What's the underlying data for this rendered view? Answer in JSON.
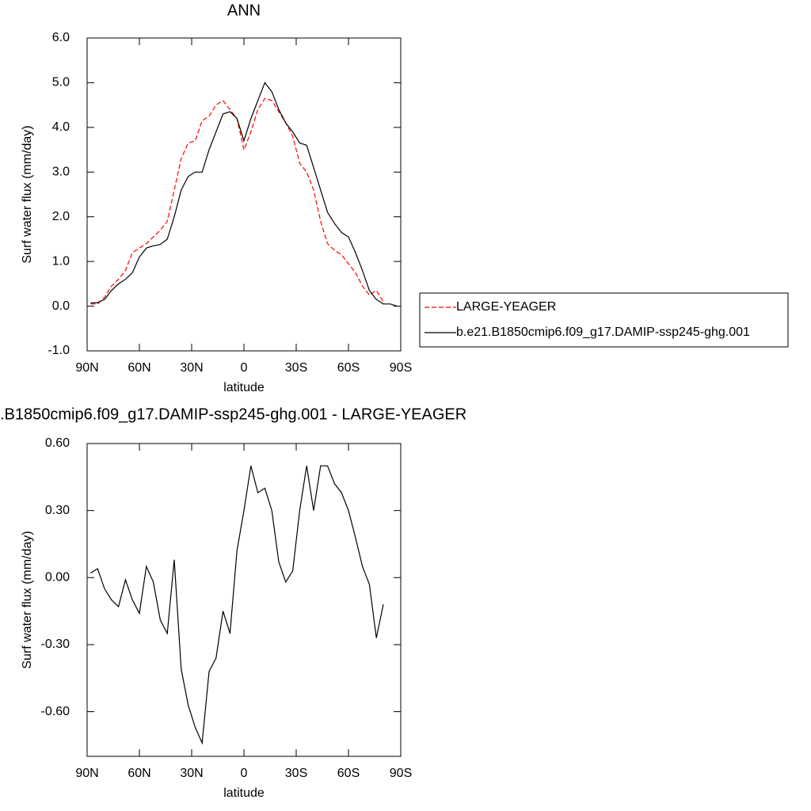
{
  "chart_data": [
    {
      "type": "line",
      "title": "ANN",
      "xlabel": "latitude",
      "ylabel": "Surf water flux (mm/day)",
      "x": [
        88,
        84,
        80,
        76,
        72,
        68,
        64,
        60,
        56,
        52,
        48,
        44,
        40,
        36,
        32,
        28,
        24,
        20,
        16,
        12,
        8,
        4,
        0,
        -4,
        -8,
        -12,
        -16,
        -20,
        -24,
        -28,
        -32,
        -36,
        -40,
        -44,
        -48,
        -52,
        -56,
        -60,
        -64,
        -68,
        -72,
        -76,
        -80,
        -84,
        -88
      ],
      "xlim": [
        90,
        -90
      ],
      "xticks": [
        {
          "value": 90,
          "label": "90N"
        },
        {
          "value": 60,
          "label": "60N"
        },
        {
          "value": 30,
          "label": "30N"
        },
        0,
        {
          "value": -30,
          "label": "30S"
        },
        {
          "value": -60,
          "label": "60S"
        },
        {
          "value": -90,
          "label": "90S"
        }
      ],
      "ylim": [
        -1,
        6
      ],
      "yticks": [
        {
          "value": -1,
          "label": "-1.0"
        },
        {
          "value": 0,
          "label": "0.0"
        },
        {
          "value": 1,
          "label": "1.0"
        },
        {
          "value": 2,
          "label": "2.0"
        },
        {
          "value": 3,
          "label": "3.0"
        },
        {
          "value": 4,
          "label": "4.0"
        },
        {
          "value": 5,
          "label": "5.0"
        },
        {
          "value": 6,
          "label": "6.0"
        }
      ],
      "legend": "right",
      "series": [
        {
          "name": "LARGE-YEAGER",
          "color": "#ff0000",
          "dash": true,
          "values": [
            0.05,
            0.05,
            0.2,
            0.45,
            0.6,
            0.8,
            1.2,
            1.3,
            1.4,
            1.55,
            1.7,
            1.9,
            2.6,
            3.3,
            3.65,
            3.7,
            4.15,
            4.25,
            4.5,
            4.6,
            4.4,
            4.2,
            3.5,
            3.9,
            4.4,
            4.65,
            4.6,
            4.35,
            4.1,
            3.8,
            3.2,
            3.0,
            2.6,
            1.9,
            1.4,
            1.25,
            1.15,
            0.95,
            0.75,
            0.45,
            0.25,
            0.35,
            0.1,
            null,
            null
          ]
        },
        {
          "name": "b.e21.B1850cmip6.f09_g17.DAMIP-ssp245-ghg.001",
          "color": "#000000",
          "dash": false,
          "values": [
            0.07,
            0.08,
            0.15,
            0.35,
            0.5,
            0.6,
            0.75,
            1.1,
            1.3,
            1.35,
            1.38,
            1.5,
            2.0,
            2.6,
            2.9,
            3.0,
            3.0,
            3.5,
            3.9,
            4.3,
            4.35,
            4.2,
            3.7,
            4.2,
            4.6,
            5.0,
            4.8,
            4.4,
            4.1,
            3.9,
            3.65,
            3.6,
            3.1,
            2.6,
            2.1,
            1.85,
            1.65,
            1.55,
            1.2,
            0.8,
            0.35,
            0.15,
            0.05,
            0.05,
            0.0
          ]
        }
      ]
    },
    {
      "type": "line",
      "title": ".B1850cmip6.f09_g17.DAMIP-ssp245-ghg.001 - LARGE-YEAGER",
      "xlabel": "latitude",
      "ylabel": "Surf water flux (mm/day)",
      "x": [
        88,
        84,
        80,
        76,
        72,
        68,
        64,
        60,
        56,
        52,
        48,
        44,
        40,
        36,
        32,
        28,
        24,
        20,
        16,
        12,
        8,
        4,
        0,
        -4,
        -8,
        -12,
        -16,
        -20,
        -24,
        -28,
        -32,
        -36,
        -40,
        -44,
        -48,
        -52,
        -56,
        -60,
        -64,
        -68,
        -72,
        -76,
        -80,
        -84,
        -88
      ],
      "xlim": [
        90,
        -90
      ],
      "xticks": [
        {
          "value": 90,
          "label": "90N"
        },
        {
          "value": 60,
          "label": "60N"
        },
        {
          "value": 30,
          "label": "30N"
        },
        0,
        {
          "value": -30,
          "label": "30S"
        },
        {
          "value": -60,
          "label": "60S"
        },
        {
          "value": -90,
          "label": "90S"
        }
      ],
      "ylim": [
        -0.8,
        0.6
      ],
      "yticks": [
        {
          "value": -0.6,
          "label": "-0.60"
        },
        {
          "value": -0.3,
          "label": "-0.30"
        },
        {
          "value": 0,
          "label": "0.00"
        },
        {
          "value": 0.3,
          "label": "0.30"
        },
        {
          "value": 0.6,
          "label": "0.60"
        }
      ],
      "series": [
        {
          "color": "#000000",
          "dash": false,
          "values": [
            0.02,
            0.04,
            -0.05,
            -0.1,
            -0.13,
            -0.01,
            -0.1,
            -0.16,
            0.05,
            -0.02,
            -0.19,
            -0.25,
            0.08,
            -0.41,
            -0.57,
            -0.67,
            -0.74,
            -0.42,
            -0.36,
            -0.15,
            -0.25,
            0.12,
            0.3,
            0.5,
            0.38,
            0.4,
            0.3,
            0.07,
            -0.02,
            0.03,
            0.3,
            0.5,
            0.3,
            0.5,
            0.5,
            0.42,
            0.38,
            0.3,
            0.18,
            0.05,
            -0.03,
            -0.27,
            -0.12,
            null,
            null
          ]
        }
      ]
    }
  ]
}
